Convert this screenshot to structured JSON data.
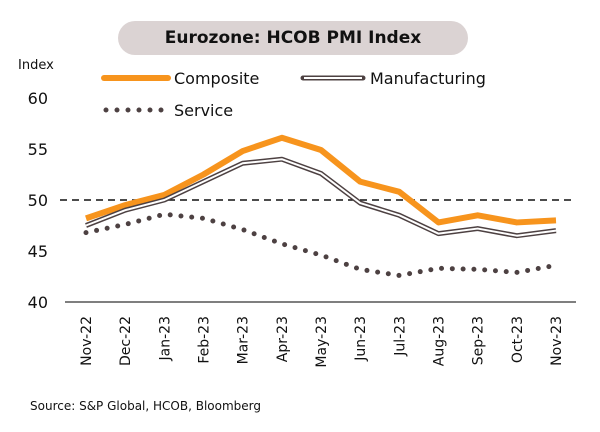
{
  "chart_data": {
    "type": "line",
    "title": "Eurozone: HCOB PMI Index",
    "ylabel": "Index",
    "xlabel": "",
    "ylim": [
      40,
      60
    ],
    "yticks": [
      40,
      45,
      50,
      55,
      60
    ],
    "reference_line": {
      "value": 50,
      "style": "dashed"
    },
    "categories": [
      "Nov-22",
      "Dec-22",
      "Jan-23",
      "Feb-23",
      "Mar-23",
      "Apr-23",
      "May-23",
      "Jun-23",
      "Jul-23",
      "Aug-23",
      "Sep-23",
      "Oct-23",
      "Nov-23"
    ],
    "series": [
      {
        "name": "Composite",
        "style": "solid-thick",
        "color": "#f7941d",
        "values": [
          48.2,
          49.5,
          50.5,
          52.5,
          54.8,
          56.1,
          54.9,
          51.8,
          50.8,
          47.8,
          48.5,
          47.8,
          48.0
        ]
      },
      {
        "name": "Manufacturing",
        "style": "double-outline",
        "color": "#4d4142",
        "values": [
          47.5,
          49.0,
          50.0,
          51.8,
          53.6,
          54.0,
          52.6,
          49.7,
          48.5,
          46.7,
          47.2,
          46.5,
          47.0
        ]
      },
      {
        "name": "Service",
        "style": "dotted",
        "color": "#4d4142",
        "values": [
          46.8,
          47.6,
          48.6,
          48.2,
          47.1,
          45.7,
          44.6,
          43.2,
          42.6,
          43.3,
          43.2,
          42.9,
          43.6
        ]
      }
    ],
    "legend": "top",
    "grid": false
  },
  "source": "Source: S&P Global, HCOB, Bloomberg"
}
